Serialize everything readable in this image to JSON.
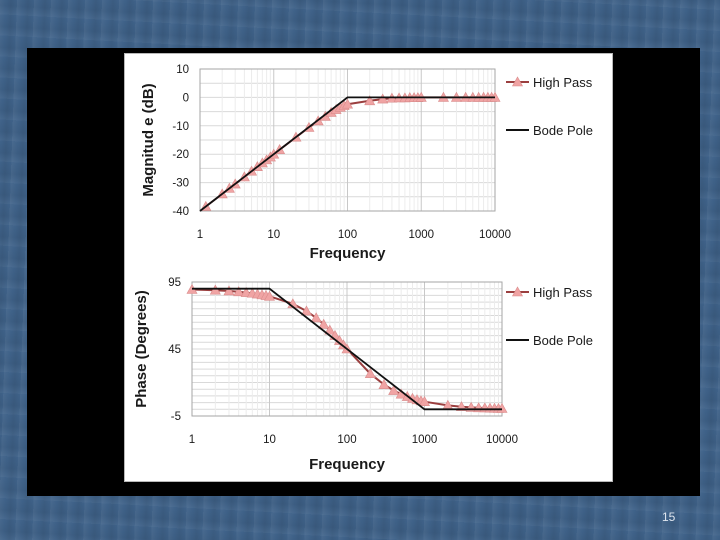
{
  "page_number": "15",
  "colors": {
    "high_pass": "#9b3f3f",
    "marker": "#f0a4a4",
    "bode_pole": "#111111",
    "grid": "#d9d9d9"
  },
  "chart_data": [
    {
      "type": "line",
      "xscale": "log",
      "xlim": [
        1,
        10000
      ],
      "ylim": [
        -40,
        10
      ],
      "xticks": [
        "1",
        "10",
        "100",
        "1000",
        "10000"
      ],
      "yticks": [
        "10",
        "0",
        "-10",
        "-20",
        "-30",
        "-40"
      ],
      "xlabel": "Frequency",
      "ylabel": "Magnitud e (dB)",
      "grid": true,
      "legend_position": "right",
      "series": [
        {
          "name": "High Pass",
          "marker": "triangle",
          "x": [
            1.2,
            2,
            2.5,
            3,
            4,
            5,
            6,
            7,
            8,
            9,
            10,
            12,
            20,
            30,
            40,
            50,
            60,
            70,
            80,
            90,
            100,
            200,
            300,
            400,
            500,
            600,
            700,
            800,
            900,
            1000,
            2000,
            3000,
            4000,
            5000,
            6000,
            7000,
            8000,
            9000,
            10000
          ],
          "y": [
            -38.4,
            -34.0,
            -32.0,
            -30.5,
            -28.0,
            -26.0,
            -24.4,
            -23.1,
            -22.0,
            -21.0,
            -20.0,
            -18.4,
            -14.0,
            -10.6,
            -8.3,
            -6.7,
            -5.3,
            -4.3,
            -3.5,
            -2.9,
            -2.4,
            -1.2,
            -0.6,
            -0.3,
            -0.2,
            -0.2,
            -0.1,
            -0.1,
            -0.1,
            0.0,
            0.0,
            0.0,
            0.0,
            0.0,
            0.0,
            0.0,
            0.0,
            0.0,
            0.0
          ]
        },
        {
          "name": "Bode Pole",
          "x": [
            1,
            100,
            10000
          ],
          "y": [
            -40,
            0,
            0
          ]
        }
      ]
    },
    {
      "type": "line",
      "xscale": "log",
      "xlim": [
        1,
        10000
      ],
      "ylim": [
        -5,
        95
      ],
      "xticks": [
        "1",
        "10",
        "100",
        "1000",
        "10000"
      ],
      "yticks": [
        "95",
        "45",
        "-5"
      ],
      "xlabel": "Frequency",
      "ylabel": "Phase (Degrees)",
      "grid": true,
      "legend_position": "right",
      "series": [
        {
          "name": "High Pass",
          "marker": "triangle",
          "x": [
            1,
            2,
            3,
            4,
            5,
            6,
            7,
            8,
            9,
            10,
            20,
            30,
            40,
            50,
            60,
            70,
            80,
            90,
            100,
            200,
            300,
            400,
            500,
            600,
            700,
            800,
            900,
            1000,
            2000,
            3000,
            4000,
            5000,
            6000,
            7000,
            8000,
            9000,
            10000
          ],
          "y": [
            89.4,
            88.9,
            88.3,
            87.7,
            87.1,
            86.6,
            86.0,
            85.4,
            84.9,
            84.3,
            78.7,
            73.3,
            68.2,
            63.4,
            59.0,
            55.0,
            51.3,
            48.0,
            45.0,
            26.6,
            18.4,
            14.0,
            11.3,
            9.5,
            8.1,
            7.1,
            6.3,
            5.7,
            2.9,
            1.9,
            1.4,
            1.1,
            1.0,
            0.8,
            0.7,
            0.6,
            0.6
          ]
        },
        {
          "name": "Bode Pole",
          "x": [
            1,
            10,
            1000,
            10000
          ],
          "y": [
            90,
            90,
            0,
            0
          ]
        }
      ]
    }
  ]
}
